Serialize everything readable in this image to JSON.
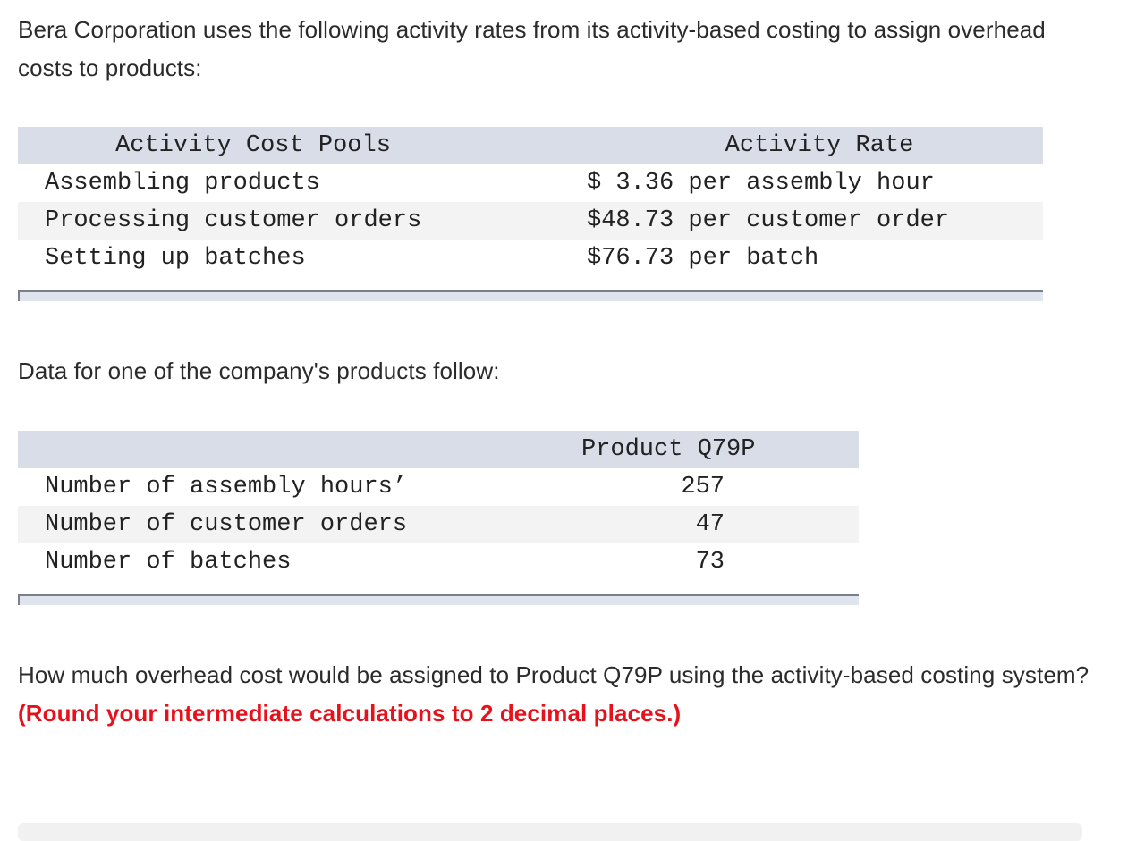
{
  "intro": "Bera Corporation uses the following activity rates from its activity-based costing to assign overhead costs to products:",
  "rates_table": {
    "headers": {
      "pool": "Activity Cost Pools",
      "rate": "Activity Rate"
    },
    "rows": [
      {
        "pool": "Assembling products",
        "rate": "$ 3.36 per assembly hour"
      },
      {
        "pool": "Processing customer orders",
        "rate": "$48.73 per customer order"
      },
      {
        "pool": "Setting up batches",
        "rate": "$76.73 per batch"
      }
    ]
  },
  "data_intro": "Data for one of the company's products follow:",
  "product_table": {
    "header": "Product Q79P",
    "rows": [
      {
        "label": "Number of assembly hours’",
        "value": "257"
      },
      {
        "label": "Number of customer orders",
        "value": "47"
      },
      {
        "label": "Number of batches",
        "value": "73"
      }
    ]
  },
  "question": {
    "text": "How much overhead cost would be assigned to Product Q79P using the activity-based costing system?",
    "instruction": "(Round your intermediate calculations to 2 decimal places.)"
  },
  "colors": {
    "header_bg": "#d9dde8",
    "alt_row_bg": "#f3f3f3",
    "instruction_red": "#e8101a"
  }
}
